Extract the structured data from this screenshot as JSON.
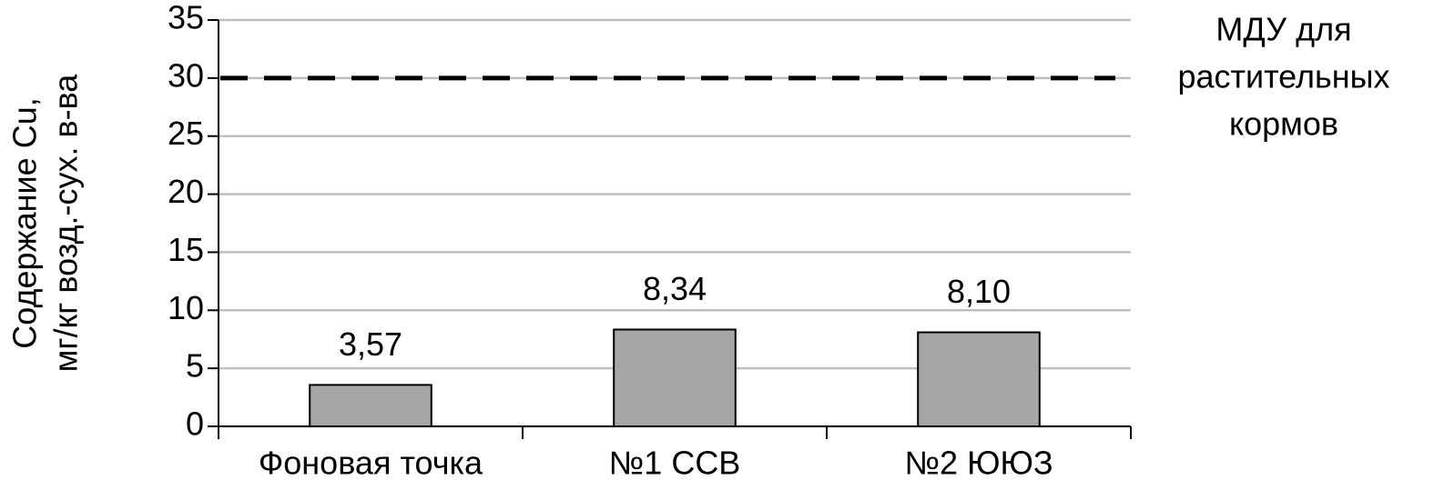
{
  "chart_data": {
    "type": "bar",
    "y_label": [
      "Содержание  Cu,",
      "мг/кг возд.-сух. в-ва"
    ],
    "categories": [
      "Фоновая точка",
      "№1 ССВ",
      "№2 ЮЮЗ"
    ],
    "values": [
      3.57,
      8.34,
      8.1
    ],
    "value_labels": [
      "3,57",
      "8,34",
      "8,10"
    ],
    "color": "#a6a6a6",
    "ylim": [
      0,
      35
    ],
    "yticks": [
      0,
      5,
      10,
      15,
      20,
      25,
      30,
      35
    ],
    "grid": true,
    "reference_line": {
      "value": 30,
      "label": [
        "МДУ для",
        "растительных",
        "кормов"
      ],
      "color": "#000000"
    }
  }
}
